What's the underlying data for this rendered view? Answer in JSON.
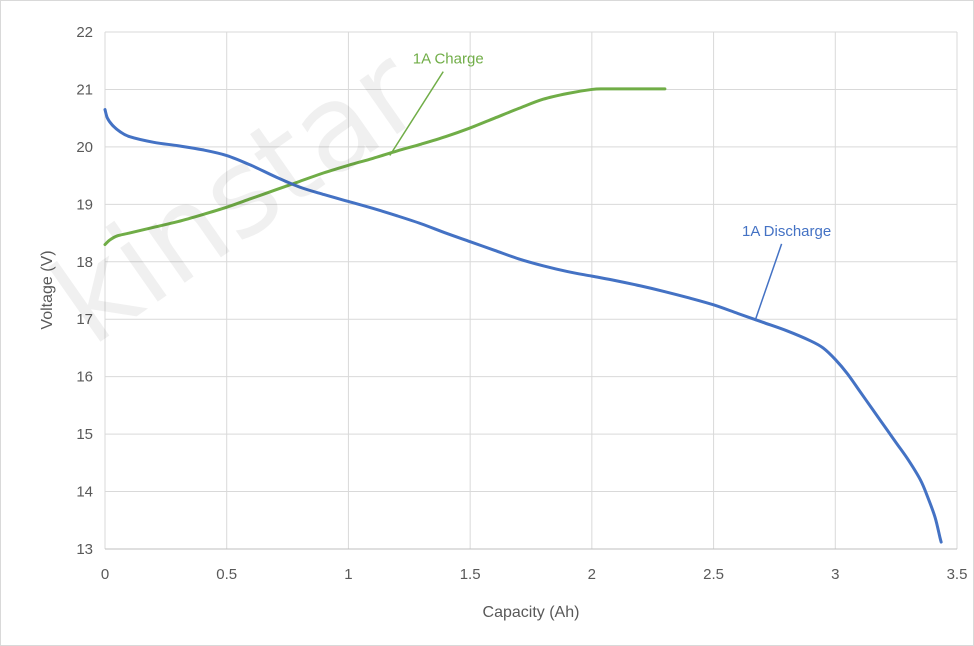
{
  "watermark": "kinstar",
  "chart_data": {
    "type": "line",
    "title": "",
    "xlabel": "Capacity (Ah)",
    "ylabel": "Voltage (V)",
    "xlim": [
      0,
      3.5
    ],
    "ylim": [
      13,
      22
    ],
    "xticks": [
      "0",
      "0.5",
      "1",
      "1.5",
      "2",
      "2.5",
      "3",
      "3.5"
    ],
    "yticks": [
      "13",
      "14",
      "15",
      "16",
      "17",
      "18",
      "19",
      "20",
      "21",
      "22"
    ],
    "grid": true,
    "legend": "none",
    "series": [
      {
        "name": "1A Charge",
        "color": "#70AD47",
        "points": [
          [
            0,
            18.3
          ],
          [
            0.02,
            18.38
          ],
          [
            0.05,
            18.45
          ],
          [
            0.1,
            18.5
          ],
          [
            0.2,
            18.6
          ],
          [
            0.3,
            18.7
          ],
          [
            0.4,
            18.82
          ],
          [
            0.5,
            18.95
          ],
          [
            0.6,
            19.1
          ],
          [
            0.7,
            19.25
          ],
          [
            0.8,
            19.4
          ],
          [
            0.9,
            19.55
          ],
          [
            1.0,
            19.68
          ],
          [
            1.1,
            19.8
          ],
          [
            1.2,
            19.93
          ],
          [
            1.3,
            20.05
          ],
          [
            1.4,
            20.18
          ],
          [
            1.5,
            20.33
          ],
          [
            1.6,
            20.5
          ],
          [
            1.7,
            20.67
          ],
          [
            1.8,
            20.83
          ],
          [
            1.9,
            20.93
          ],
          [
            2.0,
            21.0
          ],
          [
            2.05,
            21.01
          ],
          [
            2.1,
            21.01
          ],
          [
            2.2,
            21.01
          ],
          [
            2.3,
            21.01
          ]
        ]
      },
      {
        "name": "1A Discharge",
        "color": "#4472C4",
        "points": [
          [
            0,
            20.65
          ],
          [
            0.01,
            20.5
          ],
          [
            0.03,
            20.38
          ],
          [
            0.06,
            20.27
          ],
          [
            0.1,
            20.18
          ],
          [
            0.2,
            20.08
          ],
          [
            0.3,
            20.02
          ],
          [
            0.4,
            19.95
          ],
          [
            0.5,
            19.85
          ],
          [
            0.6,
            19.68
          ],
          [
            0.7,
            19.48
          ],
          [
            0.8,
            19.3
          ],
          [
            0.9,
            19.17
          ],
          [
            1.0,
            19.05
          ],
          [
            1.1,
            18.93
          ],
          [
            1.2,
            18.8
          ],
          [
            1.3,
            18.66
          ],
          [
            1.4,
            18.5
          ],
          [
            1.5,
            18.35
          ],
          [
            1.6,
            18.2
          ],
          [
            1.7,
            18.05
          ],
          [
            1.8,
            17.93
          ],
          [
            1.9,
            17.83
          ],
          [
            2.0,
            17.75
          ],
          [
            2.1,
            17.67
          ],
          [
            2.2,
            17.58
          ],
          [
            2.3,
            17.48
          ],
          [
            2.4,
            17.37
          ],
          [
            2.5,
            17.25
          ],
          [
            2.6,
            17.1
          ],
          [
            2.7,
            16.95
          ],
          [
            2.8,
            16.8
          ],
          [
            2.9,
            16.62
          ],
          [
            2.95,
            16.5
          ],
          [
            3.0,
            16.3
          ],
          [
            3.05,
            16.05
          ],
          [
            3.1,
            15.75
          ],
          [
            3.15,
            15.45
          ],
          [
            3.2,
            15.15
          ],
          [
            3.25,
            14.85
          ],
          [
            3.3,
            14.55
          ],
          [
            3.35,
            14.2
          ],
          [
            3.38,
            13.9
          ],
          [
            3.41,
            13.55
          ],
          [
            3.43,
            13.2
          ],
          [
            3.435,
            13.12
          ]
        ]
      }
    ],
    "annotations": [
      {
        "text": "1A Charge",
        "series": 0,
        "color": "#70AD47",
        "text_x": 1.41,
        "text_y": 21.45,
        "target_x": 1.17,
        "target_y": 19.85
      },
      {
        "text": "1A Discharge",
        "series": 1,
        "color": "#4472C4",
        "text_x": 2.8,
        "text_y": 18.45,
        "target_x": 2.67,
        "target_y": 16.97
      }
    ]
  }
}
